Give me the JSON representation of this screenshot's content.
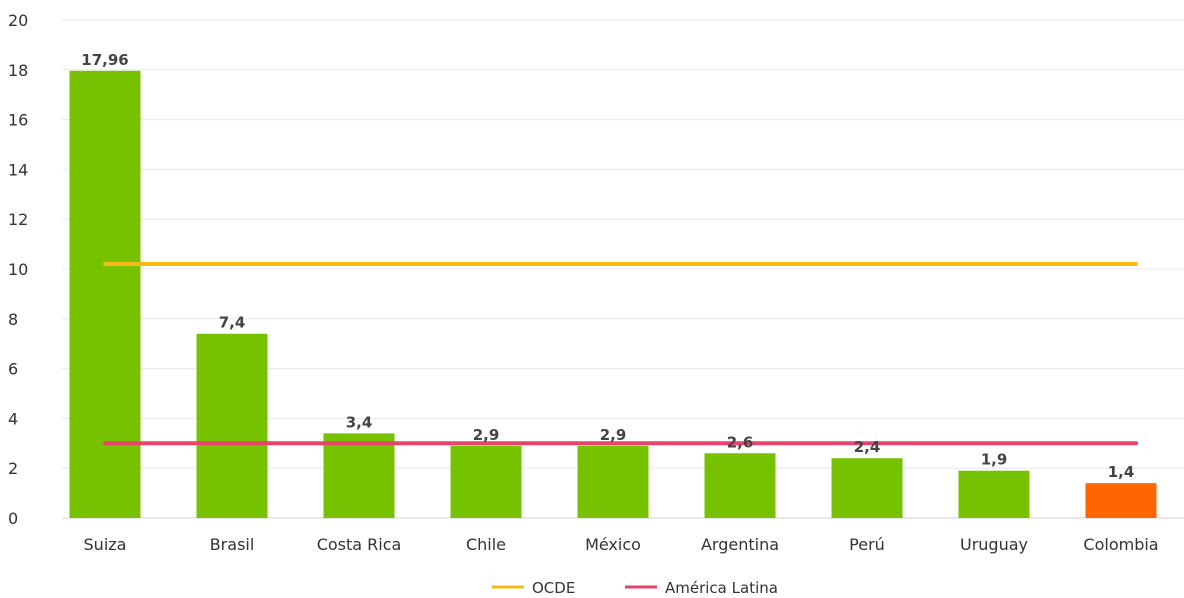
{
  "chart_data": {
    "type": "bar",
    "title": "",
    "xlabel": "",
    "ylabel": "",
    "ylim": [
      0,
      20
    ],
    "yticks": [
      0,
      2,
      4,
      6,
      8,
      10,
      12,
      14,
      16,
      18,
      20
    ],
    "grid": true,
    "categories": [
      "Suiza",
      "Brasil",
      "Costa Rica",
      "Chile",
      "México",
      "Argentina",
      "Perú",
      "Uruguay",
      "Colombia"
    ],
    "values": [
      17.96,
      7.4,
      3.4,
      2.9,
      2.9,
      2.6,
      2.4,
      1.9,
      1.4
    ],
    "value_labels": [
      "17,96",
      "7,4",
      "3,4",
      "2,9",
      "2,9",
      "2,6",
      "2,4",
      "1,9",
      "1,4"
    ],
    "bar_colors": [
      "#77c200",
      "#77c200",
      "#77c200",
      "#77c200",
      "#77c200",
      "#77c200",
      "#77c200",
      "#77c200",
      "#ff6600"
    ],
    "reference_lines": [
      {
        "name": "OCDE",
        "value": 10.2,
        "color": "#f5b914"
      },
      {
        "name": "América Latina",
        "value": 3.0,
        "color": "#e8436b"
      }
    ],
    "legend_position": "bottom-center"
  }
}
